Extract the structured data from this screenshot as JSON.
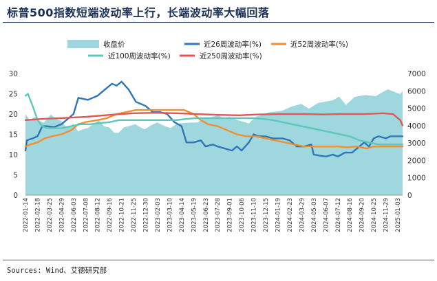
{
  "title": "标普500指数短端波动率上行，长端波动率大幅回落",
  "source": "Sources: Wind、艾德研究部",
  "chart_data": {
    "type": "line",
    "x_tick_labels": [
      "2022-01-14",
      "2022-02-18",
      "2022-03-25",
      "2022-04-29",
      "2022-06-03",
      "2022-07-08",
      "2022-08-12",
      "2022-09-16",
      "2022-10-21",
      "2022-11-25",
      "2022-12-30",
      "2023-02-03",
      "2023-03-10",
      "2023-04-14",
      "2023-05-19",
      "2023-06-23",
      "2023-07-28",
      "2023-09-01",
      "2023-10-06",
      "2023-11-10",
      "2023-12-15",
      "2024-01-19",
      "2024-02-23",
      "2024-03-29",
      "2024-05-03",
      "2024-06-07",
      "2024-07-12",
      "2024-08-16",
      "2024-09-20",
      "2024-10-25",
      "2024-11-29",
      "2025-01-03"
    ],
    "x_range": [
      "2022-01-14",
      "2025-01-17"
    ],
    "left_axis": {
      "ticks": [
        0,
        5,
        10,
        15,
        20,
        25,
        30
      ],
      "range": [
        0,
        30
      ]
    },
    "right_axis": {
      "ticks": [
        0,
        1000,
        2000,
        3000,
        4000,
        5000,
        6000,
        7000
      ],
      "range": [
        0,
        7000
      ]
    },
    "grid": false,
    "legend_placement": "top",
    "series": [
      {
        "name": "收盘价",
        "type": "area",
        "axis": "right",
        "color": "#9fd7df",
        "points": [
          [
            "2022-01-14",
            4660
          ],
          [
            "2022-01-27",
            4330
          ],
          [
            "2022-02-10",
            4500
          ],
          [
            "2022-02-24",
            4280
          ],
          [
            "2022-03-08",
            4170
          ],
          [
            "2022-03-29",
            4630
          ],
          [
            "2022-04-12",
            4400
          ],
          [
            "2022-04-28",
            4270
          ],
          [
            "2022-05-12",
            3930
          ],
          [
            "2022-05-20",
            3900
          ],
          [
            "2022-06-03",
            4110
          ],
          [
            "2022-06-16",
            3670
          ],
          [
            "2022-06-30",
            3790
          ],
          [
            "2022-07-15",
            3860
          ],
          [
            "2022-08-01",
            4120
          ],
          [
            "2022-08-16",
            4300
          ],
          [
            "2022-08-31",
            3960
          ],
          [
            "2022-09-15",
            3900
          ],
          [
            "2022-09-30",
            3590
          ],
          [
            "2022-10-12",
            3580
          ],
          [
            "2022-10-28",
            3900
          ],
          [
            "2022-11-15",
            3990
          ],
          [
            "2022-11-30",
            4080
          ],
          [
            "2022-12-15",
            3900
          ],
          [
            "2022-12-28",
            3780
          ],
          [
            "2023-01-13",
            4000
          ],
          [
            "2023-02-02",
            4180
          ],
          [
            "2023-02-24",
            3970
          ],
          [
            "2023-03-13",
            3860
          ],
          [
            "2023-03-31",
            4110
          ],
          [
            "2023-04-28",
            4170
          ],
          [
            "2023-05-31",
            4180
          ],
          [
            "2023-06-15",
            4430
          ],
          [
            "2023-06-30",
            4450
          ],
          [
            "2023-07-31",
            4590
          ],
          [
            "2023-08-18",
            4370
          ],
          [
            "2023-08-31",
            4510
          ],
          [
            "2023-09-29",
            4290
          ],
          [
            "2023-10-27",
            4120
          ],
          [
            "2023-11-15",
            4500
          ],
          [
            "2023-12-28",
            4780
          ],
          [
            "2024-01-31",
            4850
          ],
          [
            "2024-02-29",
            5100
          ],
          [
            "2024-03-28",
            5250
          ],
          [
            "2024-04-19",
            4970
          ],
          [
            "2024-05-15",
            5300
          ],
          [
            "2024-06-28",
            5460
          ],
          [
            "2024-07-16",
            5670
          ],
          [
            "2024-08-05",
            5190
          ],
          [
            "2024-08-30",
            5650
          ],
          [
            "2024-09-30",
            5760
          ],
          [
            "2024-10-31",
            5700
          ],
          [
            "2024-11-29",
            6030
          ],
          [
            "2024-12-06",
            6090
          ],
          [
            "2024-12-31",
            5880
          ],
          [
            "2025-01-10",
            5830
          ],
          [
            "2025-01-17",
            5990
          ]
        ]
      },
      {
        "name": "近26周波动率(%)",
        "type": "line",
        "axis": "left",
        "color": "#2e75b6",
        "points": [
          [
            "2022-01-14",
            11
          ],
          [
            "2022-01-18",
            13.5
          ],
          [
            "2022-02-04",
            14
          ],
          [
            "2022-02-18",
            14.5
          ],
          [
            "2022-03-04",
            17
          ],
          [
            "2022-03-18",
            17
          ],
          [
            "2022-04-08",
            16.8
          ],
          [
            "2022-04-29",
            17.5
          ],
          [
            "2022-05-20",
            19
          ],
          [
            "2022-06-03",
            20
          ],
          [
            "2022-06-17",
            24
          ],
          [
            "2022-07-15",
            23.5
          ],
          [
            "2022-08-12",
            24.5
          ],
          [
            "2022-09-02",
            26
          ],
          [
            "2022-09-23",
            27.5
          ],
          [
            "2022-10-07",
            27
          ],
          [
            "2022-10-21",
            28
          ],
          [
            "2022-11-11",
            26
          ],
          [
            "2022-12-02",
            23
          ],
          [
            "2022-12-30",
            22
          ],
          [
            "2023-01-20",
            20.5
          ],
          [
            "2023-02-10",
            20.5
          ],
          [
            "2023-03-03",
            20
          ],
          [
            "2023-03-24",
            18
          ],
          [
            "2023-04-14",
            17
          ],
          [
            "2023-04-28",
            13
          ],
          [
            "2023-05-19",
            13
          ],
          [
            "2023-06-09",
            13.5
          ],
          [
            "2023-06-23",
            12
          ],
          [
            "2023-07-14",
            12.5
          ],
          [
            "2023-07-28",
            12
          ],
          [
            "2023-08-18",
            11.5
          ],
          [
            "2023-09-08",
            11
          ],
          [
            "2023-09-22",
            12
          ],
          [
            "2023-10-06",
            11
          ],
          [
            "2023-10-27",
            13
          ],
          [
            "2023-11-10",
            15
          ],
          [
            "2023-11-24",
            14.5
          ],
          [
            "2023-12-15",
            14.5
          ],
          [
            "2024-01-05",
            14
          ],
          [
            "2024-02-02",
            14
          ],
          [
            "2024-02-23",
            13.5
          ],
          [
            "2024-03-15",
            12
          ],
          [
            "2024-04-05",
            12
          ],
          [
            "2024-04-26",
            12.5
          ],
          [
            "2024-05-03",
            10
          ],
          [
            "2024-06-07",
            9.5
          ],
          [
            "2024-06-28",
            10
          ],
          [
            "2024-07-12",
            9.5
          ],
          [
            "2024-08-02",
            10.5
          ],
          [
            "2024-08-23",
            10.5
          ],
          [
            "2024-09-13",
            12
          ],
          [
            "2024-09-27",
            13
          ],
          [
            "2024-10-11",
            12
          ],
          [
            "2024-10-25",
            14
          ],
          [
            "2024-11-08",
            14.5
          ],
          [
            "2024-11-29",
            14
          ],
          [
            "2024-12-13",
            14.5
          ],
          [
            "2025-01-03",
            14.5
          ],
          [
            "2025-01-17",
            14.5
          ]
        ]
      },
      {
        "name": "近52周波动率(%)",
        "type": "line",
        "axis": "left",
        "color": "#f28e2b",
        "points": [
          [
            "2022-01-14",
            12
          ],
          [
            "2022-01-28",
            12.5
          ],
          [
            "2022-02-18",
            13
          ],
          [
            "2022-03-11",
            14
          ],
          [
            "2022-04-01",
            14.5
          ],
          [
            "2022-04-29",
            15
          ],
          [
            "2022-05-27",
            16
          ],
          [
            "2022-06-17",
            17.5
          ],
          [
            "2022-07-08",
            18
          ],
          [
            "2022-08-12",
            18.5
          ],
          [
            "2022-09-09",
            19
          ],
          [
            "2022-10-07",
            20
          ],
          [
            "2022-11-04",
            20.5
          ],
          [
            "2022-12-02",
            21
          ],
          [
            "2022-12-30",
            21
          ],
          [
            "2023-01-27",
            21
          ],
          [
            "2023-02-24",
            21
          ],
          [
            "2023-03-24",
            21
          ],
          [
            "2023-04-21",
            21
          ],
          [
            "2023-05-19",
            20
          ],
          [
            "2023-06-09",
            18.5
          ],
          [
            "2023-06-30",
            17.5
          ],
          [
            "2023-07-28",
            17
          ],
          [
            "2023-08-25",
            16
          ],
          [
            "2023-09-22",
            15
          ],
          [
            "2023-10-20",
            14.5
          ],
          [
            "2023-11-17",
            14.5
          ],
          [
            "2023-12-15",
            14
          ],
          [
            "2024-01-12",
            13.5
          ],
          [
            "2024-02-09",
            13
          ],
          [
            "2024-03-08",
            12.5
          ],
          [
            "2024-04-05",
            12
          ],
          [
            "2024-05-03",
            12
          ],
          [
            "2024-06-07",
            12
          ],
          [
            "2024-07-12",
            12
          ],
          [
            "2024-08-09",
            11.8
          ],
          [
            "2024-09-06",
            12
          ],
          [
            "2024-10-04",
            11.5
          ],
          [
            "2024-10-25",
            12
          ],
          [
            "2024-11-22",
            12
          ],
          [
            "2024-12-20",
            12
          ],
          [
            "2025-01-17",
            12
          ]
        ]
      },
      {
        "name": "近100周波动率(%)",
        "type": "line",
        "axis": "left",
        "color": "#5bc8b9",
        "points": [
          [
            "2022-01-14",
            24.5
          ],
          [
            "2022-01-21",
            25
          ],
          [
            "2022-02-04",
            22
          ],
          [
            "2022-02-18",
            18.5
          ],
          [
            "2022-03-04",
            17
          ],
          [
            "2022-03-18",
            16.5
          ],
          [
            "2022-04-08",
            16.5
          ],
          [
            "2022-04-29",
            16.5
          ],
          [
            "2022-05-27",
            17
          ],
          [
            "2022-06-24",
            17.5
          ],
          [
            "2022-07-22",
            17.5
          ],
          [
            "2022-08-19",
            17.8
          ],
          [
            "2022-09-16",
            18
          ],
          [
            "2022-10-14",
            18.5
          ],
          [
            "2022-11-11",
            18.5
          ],
          [
            "2022-12-09",
            18.5
          ],
          [
            "2023-01-06",
            18.5
          ],
          [
            "2023-02-03",
            18.5
          ],
          [
            "2023-03-03",
            18.5
          ],
          [
            "2023-03-31",
            18.5
          ],
          [
            "2023-04-28",
            18.8
          ],
          [
            "2023-05-26",
            19
          ],
          [
            "2023-06-23",
            19
          ],
          [
            "2023-07-21",
            19
          ],
          [
            "2023-08-18",
            19
          ],
          [
            "2023-09-15",
            19
          ],
          [
            "2023-10-13",
            19
          ],
          [
            "2023-11-10",
            19
          ],
          [
            "2023-12-08",
            18.8
          ],
          [
            "2024-01-05",
            18.5
          ],
          [
            "2024-02-02",
            18
          ],
          [
            "2024-03-01",
            17.5
          ],
          [
            "2024-03-29",
            17
          ],
          [
            "2024-04-26",
            16.5
          ],
          [
            "2024-05-24",
            16
          ],
          [
            "2024-06-21",
            15.5
          ],
          [
            "2024-07-19",
            15
          ],
          [
            "2024-08-16",
            14.5
          ],
          [
            "2024-09-13",
            13.5
          ],
          [
            "2024-10-11",
            13
          ],
          [
            "2024-11-08",
            12.5
          ],
          [
            "2024-12-06",
            12.5
          ],
          [
            "2025-01-03",
            12.5
          ],
          [
            "2025-01-17",
            12.5
          ]
        ]
      },
      {
        "name": "近250周波动率(%)",
        "type": "line",
        "axis": "left",
        "color": "#e05555",
        "points": [
          [
            "2022-01-14",
            18.5
          ],
          [
            "2022-03-04",
            18.8
          ],
          [
            "2022-04-29",
            19
          ],
          [
            "2022-07-08",
            19.3
          ],
          [
            "2022-09-16",
            19.8
          ],
          [
            "2022-11-25",
            20.2
          ],
          [
            "2023-01-27",
            20.3
          ],
          [
            "2023-03-31",
            20.2
          ],
          [
            "2023-05-26",
            20
          ],
          [
            "2023-07-28",
            19.8
          ],
          [
            "2023-09-29",
            19.7
          ],
          [
            "2023-11-24",
            19.9
          ],
          [
            "2024-01-26",
            20
          ],
          [
            "2024-03-29",
            20
          ],
          [
            "2024-05-31",
            19.9
          ],
          [
            "2024-07-26",
            20
          ],
          [
            "2024-09-27",
            20
          ],
          [
            "2024-11-22",
            20.2
          ],
          [
            "2024-12-20",
            20
          ],
          [
            "2025-01-10",
            18.5
          ],
          [
            "2025-01-17",
            17.2
          ]
        ]
      }
    ]
  }
}
